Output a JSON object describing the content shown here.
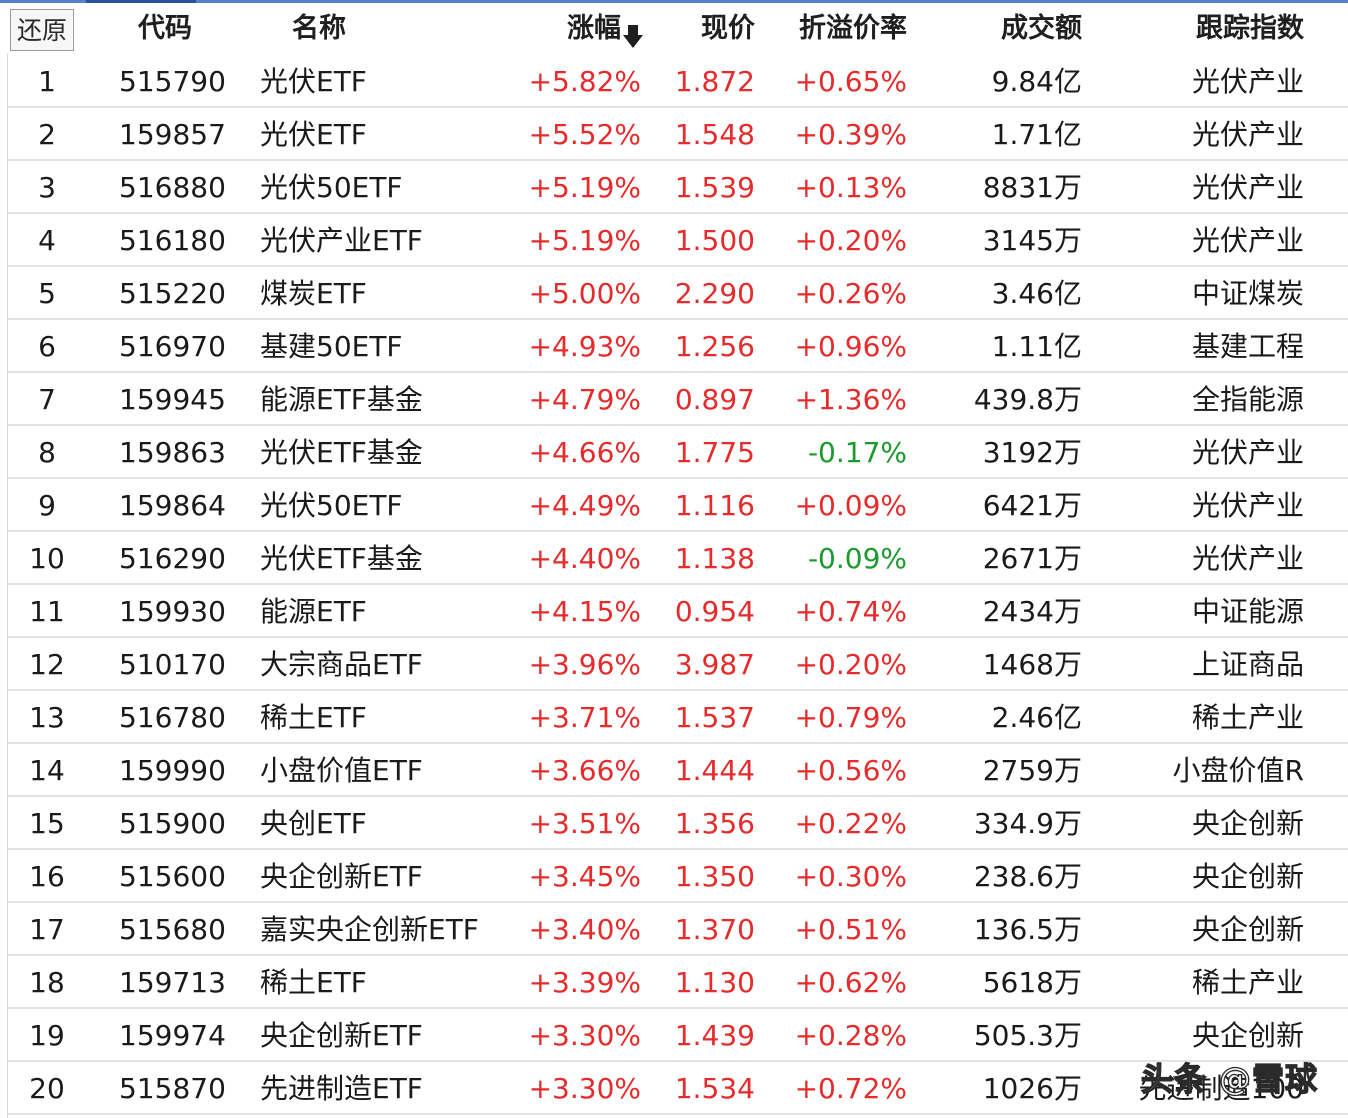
{
  "header": {
    "restore_label": "还原",
    "columns": {
      "code": "代码",
      "name": "名称",
      "change": "涨幅",
      "price": "现价",
      "premium": "折溢价率",
      "volume": "成交额",
      "index": "跟踪指数"
    },
    "sort_icon": "down-arrow-icon"
  },
  "colors": {
    "up": "#e52b2b",
    "down": "#1c9a2e",
    "text": "#1a1a1a",
    "accent": "#5b7fc7"
  },
  "rows": [
    {
      "idx": "1",
      "code": "515790",
      "name": "光伏ETF",
      "change": "+5.82%",
      "price": "1.872",
      "premium": "+0.65%",
      "volume": "9.84亿",
      "index": "光伏产业"
    },
    {
      "idx": "2",
      "code": "159857",
      "name": "光伏ETF",
      "change": "+5.52%",
      "price": "1.548",
      "premium": "+0.39%",
      "volume": "1.71亿",
      "index": "光伏产业"
    },
    {
      "idx": "3",
      "code": "516880",
      "name": "光伏50ETF",
      "change": "+5.19%",
      "price": "1.539",
      "premium": "+0.13%",
      "volume": "8831万",
      "index": "光伏产业"
    },
    {
      "idx": "4",
      "code": "516180",
      "name": "光伏产业ETF",
      "change": "+5.19%",
      "price": "1.500",
      "premium": "+0.20%",
      "volume": "3145万",
      "index": "光伏产业"
    },
    {
      "idx": "5",
      "code": "515220",
      "name": "煤炭ETF",
      "change": "+5.00%",
      "price": "2.290",
      "premium": "+0.26%",
      "volume": "3.46亿",
      "index": "中证煤炭"
    },
    {
      "idx": "6",
      "code": "516970",
      "name": "基建50ETF",
      "change": "+4.93%",
      "price": "1.256",
      "premium": "+0.96%",
      "volume": "1.11亿",
      "index": "基建工程"
    },
    {
      "idx": "7",
      "code": "159945",
      "name": "能源ETF基金",
      "change": "+4.79%",
      "price": "0.897",
      "premium": "+1.36%",
      "volume": "439.8万",
      "index": "全指能源"
    },
    {
      "idx": "8",
      "code": "159863",
      "name": "光伏ETF基金",
      "change": "+4.66%",
      "price": "1.775",
      "premium": "-0.17%",
      "volume": "3192万",
      "index": "光伏产业"
    },
    {
      "idx": "9",
      "code": "159864",
      "name": "光伏50ETF",
      "change": "+4.49%",
      "price": "1.116",
      "premium": "+0.09%",
      "volume": "6421万",
      "index": "光伏产业"
    },
    {
      "idx": "10",
      "code": "516290",
      "name": "光伏ETF基金",
      "change": "+4.40%",
      "price": "1.138",
      "premium": "-0.09%",
      "volume": "2671万",
      "index": "光伏产业"
    },
    {
      "idx": "11",
      "code": "159930",
      "name": "能源ETF",
      "change": "+4.15%",
      "price": "0.954",
      "premium": "+0.74%",
      "volume": "2434万",
      "index": "中证能源"
    },
    {
      "idx": "12",
      "code": "510170",
      "name": "大宗商品ETF",
      "change": "+3.96%",
      "price": "3.987",
      "premium": "+0.20%",
      "volume": "1468万",
      "index": "上证商品"
    },
    {
      "idx": "13",
      "code": "516780",
      "name": "稀土ETF",
      "change": "+3.71%",
      "price": "1.537",
      "premium": "+0.79%",
      "volume": "2.46亿",
      "index": "稀土产业"
    },
    {
      "idx": "14",
      "code": "159990",
      "name": "小盘价值ETF",
      "change": "+3.66%",
      "price": "1.444",
      "premium": "+0.56%",
      "volume": "2759万",
      "index": "小盘价值R"
    },
    {
      "idx": "15",
      "code": "515900",
      "name": "央创ETF",
      "change": "+3.51%",
      "price": "1.356",
      "premium": "+0.22%",
      "volume": "334.9万",
      "index": "央企创新"
    },
    {
      "idx": "16",
      "code": "515600",
      "name": "央企创新ETF",
      "change": "+3.45%",
      "price": "1.350",
      "premium": "+0.30%",
      "volume": "238.6万",
      "index": "央企创新"
    },
    {
      "idx": "17",
      "code": "515680",
      "name": "嘉实央企创新ETF",
      "change": "+3.40%",
      "price": "1.370",
      "premium": "+0.51%",
      "volume": "136.5万",
      "index": "央企创新"
    },
    {
      "idx": "18",
      "code": "159713",
      "name": "稀土ETF",
      "change": "+3.39%",
      "price": "1.130",
      "premium": "+0.62%",
      "volume": "5618万",
      "index": "稀土产业"
    },
    {
      "idx": "19",
      "code": "159974",
      "name": "央企创新ETF",
      "change": "+3.30%",
      "price": "1.439",
      "premium": "+0.28%",
      "volume": "505.3万",
      "index": "央企创新"
    },
    {
      "idx": "20",
      "code": "515870",
      "name": "先进制造ETF",
      "change": "+3.30%",
      "price": "1.534",
      "premium": "+0.72%",
      "volume": "1026万",
      "index": "先进制造100"
    }
  ],
  "watermark": "头条 @雪球"
}
